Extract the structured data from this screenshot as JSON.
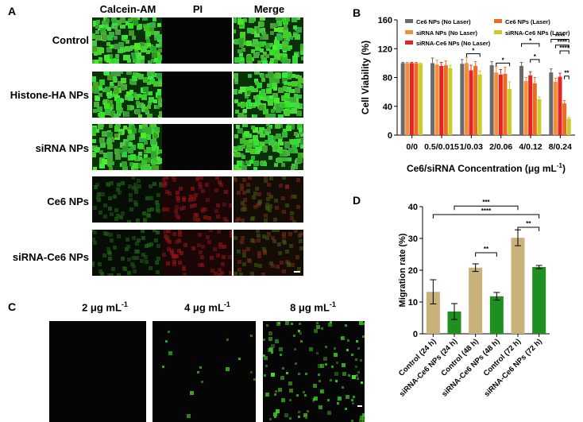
{
  "panels": {
    "a": "A",
    "b": "B",
    "c": "C",
    "d": "D"
  },
  "panel_a": {
    "columns": [
      "Calcein-AM",
      "PI",
      "Merge"
    ],
    "rows": [
      "Control",
      "Histone-HA NPs",
      "siRNA NPs",
      "Ce6 NPs",
      "siRNA-Ce6 NPs"
    ]
  },
  "panel_c": {
    "labels": [
      "2 μg mL",
      "4 μg mL",
      "8 μg mL"
    ],
    "superscript": "-1"
  },
  "colors": {
    "gray": "#6b6b6b",
    "orange": "#f0903a",
    "red": "#e8231f",
    "darkorange": "#ee6a22",
    "olive": "#c9cc2a",
    "tan": "#c8b27a",
    "green": "#1f8f1f"
  },
  "chart_data": [
    {
      "type": "bar",
      "ylabel": "Cell Viability (%)",
      "xlabel": "Ce6/siRNA Concentration (μg mL",
      "xlabel_sup": "-1",
      "xlabel_close": ")",
      "ylim": [
        0,
        160
      ],
      "yticks": [
        0,
        40,
        80,
        120,
        160
      ],
      "categories": [
        "0/0",
        "0.5/0.015",
        "1/0.03",
        "2/0.06",
        "4/0.12",
        "8/0.24"
      ],
      "series": [
        {
          "name": "Ce6 NPs (No Laser)",
          "color": "#6b6b6b",
          "values": [
            100,
            100,
            99,
            97,
            96,
            87
          ],
          "errors": [
            1,
            7,
            6,
            5,
            5,
            5
          ]
        },
        {
          "name": "siRNA NPs (No Laser)",
          "color": "#f0903a",
          "values": [
            100,
            98,
            100,
            87,
            75,
            74
          ],
          "errors": [
            1,
            6,
            8,
            8,
            5,
            5
          ]
        },
        {
          "name": "siRNA-Ce6 NPs (No Laser)",
          "color": "#e8231f",
          "values": [
            100,
            96,
            90,
            84,
            83,
            81
          ],
          "errors": [
            1,
            5,
            7,
            7,
            5,
            5
          ]
        },
        {
          "name": "Ce6 NPs (Laser)",
          "color": "#ee6a22",
          "values": [
            100,
            97,
            96,
            85,
            72,
            44
          ],
          "errors": [
            1,
            6,
            6,
            9,
            8,
            4
          ]
        },
        {
          "name": "siRNA-Ce6 NPs (Laser)",
          "color": "#c9cc2a",
          "values": [
            99,
            93,
            84,
            64,
            50,
            23
          ],
          "errors": [
            1,
            4,
            5,
            10,
            3,
            2
          ]
        }
      ],
      "legend": "top",
      "significance": [
        "*",
        "*",
        "*",
        "*",
        "****",
        "****",
        "****",
        "**"
      ]
    },
    {
      "type": "bar",
      "ylabel": "Migration rate (%)",
      "ylim": [
        0,
        40
      ],
      "yticks": [
        0,
        10,
        20,
        30,
        40
      ],
      "categories": [
        "Control (24 h)",
        "siRNA-Ce6 NPs (24 h)",
        "Control (48 h)",
        "siRNA-Ce6 NPs (48 h)",
        "Control (72 h)",
        "siRNA-Ce6 NPs (72 h)"
      ],
      "values": [
        13.2,
        7.0,
        20.8,
        11.8,
        30.2,
        21.0
      ],
      "errors": [
        3.8,
        2.5,
        1.2,
        1.2,
        2.5,
        0.5
      ],
      "significance": [
        "****",
        "***",
        "**",
        "**"
      ]
    }
  ]
}
